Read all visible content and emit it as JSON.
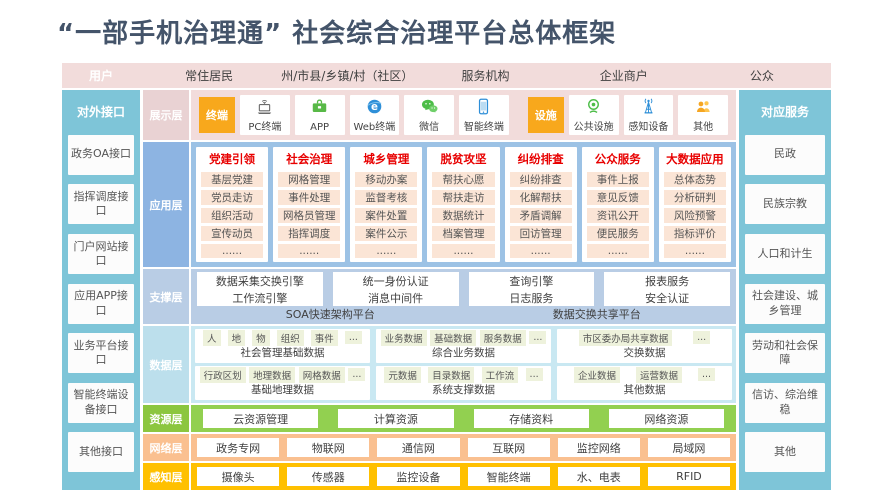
{
  "title": "“一部手机治理通” 社会综合治理平台总体框架",
  "user_bar": {
    "label": "用户",
    "groups": [
      "常住居民",
      "州/市县/乡镇/村（社区）",
      "服务机构",
      "企业商户",
      "公众"
    ]
  },
  "left_rail": {
    "title": "对外接口",
    "items": [
      "政务OA接口",
      "指挥调度接口",
      "门户网站接口",
      "应用APP接口",
      "业务平台接口",
      "智能终端设备接口",
      "其他接口"
    ]
  },
  "right_rail": {
    "title": "对应服务",
    "items": [
      "民政",
      "民族宗教",
      "人口和计生",
      "社会建设、城乡管理",
      "劳动和社会保障",
      "信访、综治维稳",
      "其他"
    ]
  },
  "layers": {
    "display": {
      "label": "展示层",
      "terminal_label": "终端",
      "facility_label": "设施",
      "terminals": [
        {
          "name": "PC终端",
          "icon": "laptop-icon"
        },
        {
          "name": "APP",
          "icon": "app-icon"
        },
        {
          "name": "Web终端",
          "icon": "browser-icon"
        },
        {
          "name": "微信",
          "icon": "wechat-icon"
        },
        {
          "name": "智能终端",
          "icon": "smartphone-icon"
        }
      ],
      "facilities": [
        {
          "name": "公共设施",
          "icon": "webcam-icon"
        },
        {
          "name": "感知设备",
          "icon": "antenna-icon"
        },
        {
          "name": "其他",
          "icon": "people-icon"
        }
      ]
    },
    "application": {
      "label": "应用层",
      "columns": [
        {
          "header": "党建引领",
          "items": [
            "基层党建",
            "党员走访",
            "组织活动",
            "宣传动员",
            "......"
          ]
        },
        {
          "header": "社会治理",
          "items": [
            "网格管理",
            "事件处理",
            "网格员管理",
            "指挥调度",
            "......"
          ]
        },
        {
          "header": "城乡管理",
          "items": [
            "移动办案",
            "监督考核",
            "案件处置",
            "案件公示",
            "......"
          ]
        },
        {
          "header": "脱贫攻坚",
          "items": [
            "帮扶心愿",
            "帮扶走访",
            "数据统计",
            "档案管理",
            "......"
          ]
        },
        {
          "header": "纠纷排查",
          "items": [
            "纠纷排查",
            "化解帮扶",
            "矛盾调解",
            "回访管理",
            "......"
          ]
        },
        {
          "header": "公众服务",
          "items": [
            "事件上报",
            "意见反馈",
            "资讯公开",
            "便民服务",
            "......"
          ]
        },
        {
          "header": "大数据应用",
          "items": [
            "总体态势",
            "分析研判",
            "风险预警",
            "指标评价",
            "......"
          ]
        }
      ]
    },
    "support": {
      "label": "支撑层",
      "row1": [
        "数据采集交换引擎",
        "统一身份认证",
        "查询引擎",
        "报表服务"
      ],
      "row2": [
        "工作流引擎",
        "消息中间件",
        "日志服务",
        "安全认证"
      ],
      "platforms": [
        "SOA快速架构平台",
        "数据交换共享平台"
      ]
    },
    "data": {
      "label": "数据层",
      "rows": [
        [
          {
            "chips": [
              "人",
              "地",
              "物",
              "组织",
              "事件",
              "..."
            ],
            "caption": "社会管理基础数据"
          },
          {
            "chips": [
              "业务数据",
              "基础数据",
              "服务数据",
              "..."
            ],
            "caption": "综合业务数据"
          },
          {
            "chips": [
              "市区委办局共享数据",
              "..."
            ],
            "caption": "交换数据"
          }
        ],
        [
          {
            "chips": [
              "行政区划",
              "地理数据",
              "网格数据",
              "..."
            ],
            "caption": "基础地理数据"
          },
          {
            "chips": [
              "元数据",
              "目录数据",
              "工作流",
              "..."
            ],
            "caption": "系统支撑数据"
          },
          {
            "chips": [
              "企业数据",
              "运营数据",
              "..."
            ],
            "caption": "其他数据"
          }
        ]
      ]
    },
    "resource": {
      "label": "资源层",
      "items": [
        "云资源管理",
        "计算资源",
        "存储资料",
        "网络资源"
      ]
    },
    "network": {
      "label": "网络层",
      "items": [
        "政务专网",
        "物联网",
        "通信网",
        "互联网",
        "监控网络",
        "局域网"
      ]
    },
    "perception": {
      "label": "感知层",
      "items": [
        "摄像头",
        "传感器",
        "监控设备",
        "智能终端",
        "水、电表",
        "RFID"
      ]
    }
  },
  "colors": {
    "title": "#44546A",
    "rail": "#7EC5D8",
    "user_bar": "#F2DCDB",
    "terminal_tag": "#F8A81C",
    "application_bg": "#9CC2E5",
    "app_header": "#E80000",
    "app_item_bg": "#FBE5D6",
    "support_bg": "#B9CDE5",
    "data_bg": "#C9E8F2",
    "chip_bg": "#EEF2DC",
    "resource_bg": "#92D050",
    "network_bg": "#FAC090",
    "perception_bg": "#FFC000"
  }
}
